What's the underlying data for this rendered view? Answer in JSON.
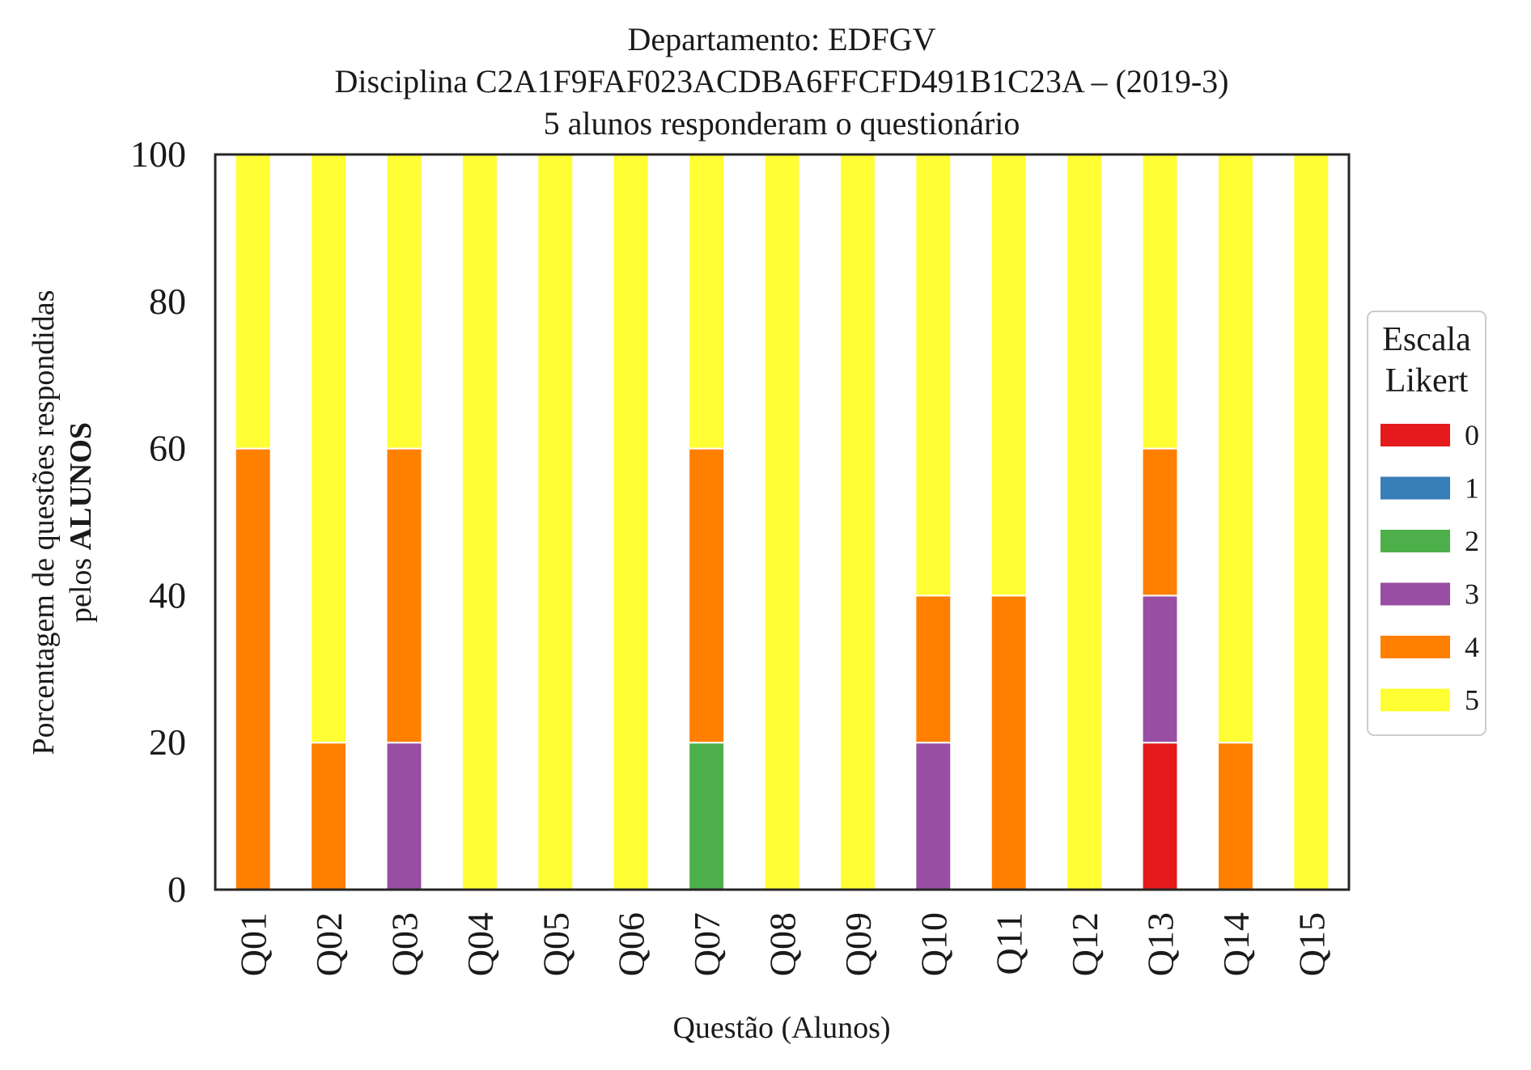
{
  "chart_data": {
    "type": "bar",
    "stacked": true,
    "title_lines": [
      "Departamento: EDFGV",
      "Disciplina C2A1F9FAF023ACDBA6FFCFD491B1C23A – (2019-3)",
      "5 alunos responderam o questionário"
    ],
    "xlabel": "Questão (Alunos)",
    "ylabel_line1": "Porcentagem de questões respondidas",
    "ylabel_line2_prefix": "pelos ",
    "ylabel_line2_bold": "ALUNOS",
    "ylim": [
      0,
      100
    ],
    "yticks": [
      "0",
      "20",
      "40",
      "60",
      "80",
      "100"
    ],
    "categories": [
      "Q01",
      "Q02",
      "Q03",
      "Q04",
      "Q05",
      "Q06",
      "Q07",
      "Q08",
      "Q09",
      "Q10",
      "Q11",
      "Q12",
      "Q13",
      "Q14",
      "Q15"
    ],
    "legend_title_line1": "Escala",
    "legend_title_line2": "Likert",
    "legend_position": "right",
    "grid": false,
    "series": [
      {
        "name": "0",
        "color": "#e41a1c",
        "values": [
          0,
          0,
          0,
          0,
          0,
          0,
          0,
          0,
          0,
          0,
          0,
          0,
          20,
          0,
          0
        ]
      },
      {
        "name": "1",
        "color": "#377eb8",
        "values": [
          0,
          0,
          0,
          0,
          0,
          0,
          0,
          0,
          0,
          0,
          0,
          0,
          0,
          0,
          0
        ]
      },
      {
        "name": "2",
        "color": "#4daf4a",
        "values": [
          0,
          0,
          0,
          0,
          0,
          0,
          20,
          0,
          0,
          0,
          0,
          0,
          0,
          0,
          0
        ]
      },
      {
        "name": "3",
        "color": "#984ea3",
        "values": [
          0,
          0,
          20,
          0,
          0,
          0,
          0,
          0,
          0,
          20,
          0,
          0,
          20,
          0,
          0
        ]
      },
      {
        "name": "4",
        "color": "#ff7f00",
        "values": [
          60,
          20,
          40,
          0,
          0,
          0,
          40,
          0,
          0,
          20,
          40,
          0,
          20,
          20,
          0
        ]
      },
      {
        "name": "5",
        "color": "#ffff33",
        "values": [
          40,
          80,
          40,
          100,
          100,
          100,
          40,
          100,
          100,
          60,
          60,
          100,
          40,
          80,
          100
        ]
      }
    ]
  }
}
